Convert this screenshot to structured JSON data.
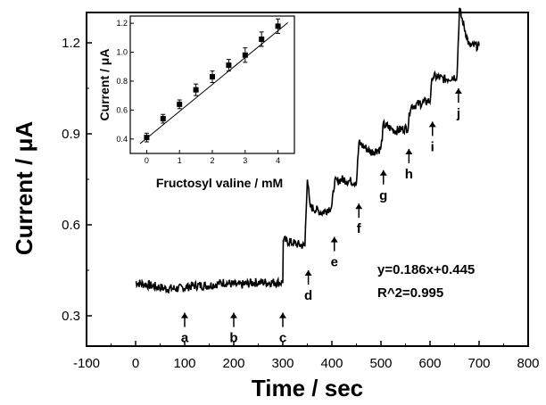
{
  "chart_data": [
    {
      "type": "line",
      "xlabel": "Time / sec",
      "ylabel": "Current / μA",
      "xlim": [
        -100,
        800
      ],
      "ylim": [
        0.2,
        1.3
      ],
      "xticks": [
        -100,
        0,
        100,
        200,
        300,
        400,
        500,
        600,
        700,
        800
      ],
      "yticks": [
        0.3,
        0.6,
        0.9,
        1.2
      ],
      "ytick_labels": [
        "0.3",
        "0.6",
        "0.9",
        "1.2"
      ],
      "series": [
        {
          "x": [
            0,
            30,
            60,
            90,
            120,
            150,
            180,
            210,
            240,
            270,
            300,
            301,
            320,
            345,
            350,
            355,
            380,
            400,
            405,
            420,
            450,
            455,
            480,
            500,
            505,
            530,
            555,
            560,
            580,
            600,
            605,
            630,
            655,
            660,
            680,
            700
          ],
          "y": [
            0.41,
            0.4,
            0.39,
            0.39,
            0.4,
            0.4,
            0.41,
            0.4,
            0.41,
            0.41,
            0.41,
            0.55,
            0.54,
            0.53,
            0.76,
            0.66,
            0.64,
            0.66,
            0.74,
            0.75,
            0.74,
            0.87,
            0.84,
            0.85,
            0.93,
            0.91,
            0.92,
            0.99,
            1.0,
            1.01,
            1.09,
            1.08,
            1.09,
            1.31,
            1.19,
            1.19
          ]
        }
      ],
      "annotations": [
        {
          "label": "a",
          "x": 100
        },
        {
          "label": "b",
          "x": 200
        },
        {
          "label": "c",
          "x": 300
        },
        {
          "label": "d",
          "x": 352
        },
        {
          "label": "e",
          "x": 405
        },
        {
          "label": "f",
          "x": 455
        },
        {
          "label": "g",
          "x": 505
        },
        {
          "label": "h",
          "x": 557
        },
        {
          "label": "i",
          "x": 605
        },
        {
          "label": "j",
          "x": 658
        }
      ],
      "equation": "y=0.186x+0.445",
      "r_squared": "R^2=0.995"
    },
    {
      "type": "scatter",
      "xlabel": "Fructosyl valine / mM",
      "ylabel": "Current / μA",
      "xlim": [
        -0.5,
        4.5
      ],
      "ylim": [
        0.3,
        1.25
      ],
      "xticks": [
        0,
        1,
        2,
        3,
        4
      ],
      "yticks": [
        0.4,
        0.6,
        0.8,
        1.0,
        1.2
      ],
      "ytick_labels": [
        "0.4",
        "0.6",
        "0.8",
        "1.0",
        "1.2"
      ],
      "points": [
        {
          "x": 0,
          "y": 0.41,
          "err": 0.03
        },
        {
          "x": 0.5,
          "y": 0.54,
          "err": 0.03
        },
        {
          "x": 1.0,
          "y": 0.64,
          "err": 0.03
        },
        {
          "x": 1.5,
          "y": 0.74,
          "err": 0.04
        },
        {
          "x": 2.0,
          "y": 0.83,
          "err": 0.04
        },
        {
          "x": 2.5,
          "y": 0.91,
          "err": 0.04
        },
        {
          "x": 3.0,
          "y": 0.98,
          "err": 0.05
        },
        {
          "x": 3.5,
          "y": 1.09,
          "err": 0.05
        },
        {
          "x": 4.0,
          "y": 1.18,
          "err": 0.05
        }
      ],
      "fit": {
        "slope": 0.186,
        "intercept": 0.445
      }
    }
  ]
}
